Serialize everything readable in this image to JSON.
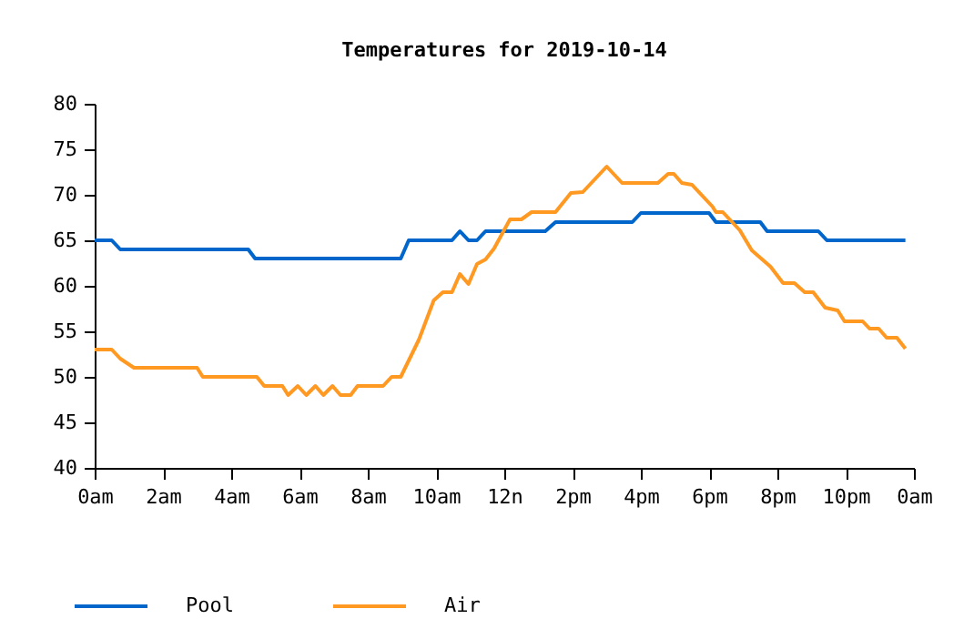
{
  "chart_data": {
    "type": "line",
    "title": "Temperatures for 2019-10-14",
    "series": [
      {
        "name": "Pool",
        "color": "#0066cc",
        "x": [
          "2019-10-14T00:00",
          "2019-10-14T00:30",
          "2019-10-14T00:45",
          "2019-10-14T04:30",
          "2019-10-14T04:42",
          "2019-10-14T08:58",
          "2019-10-14T09:12",
          "2019-10-14T10:28",
          "2019-10-14T10:42",
          "2019-10-14T10:57",
          "2019-10-14T11:12",
          "2019-10-14T11:27",
          "2019-10-14T13:12",
          "2019-10-14T13:30",
          "2019-10-14T15:45",
          "2019-10-14T16:00",
          "2019-10-14T18:00",
          "2019-10-14T18:12",
          "2019-10-14T19:30",
          "2019-10-14T19:42",
          "2019-10-14T21:12",
          "2019-10-14T21:27",
          "2019-10-14T23:45"
        ],
        "values": [
          65,
          65,
          64,
          64,
          63,
          63,
          65,
          65,
          66,
          65,
          65,
          66,
          66,
          67,
          67,
          68,
          68,
          67,
          67,
          66,
          66,
          65,
          65
        ]
      },
      {
        "name": "Air",
        "color": "#ff9922",
        "x": [
          "2019-10-14T00:00",
          "2019-10-14T00:30",
          "2019-10-14T00:45",
          "2019-10-14T01:09",
          "2019-10-14T03:00",
          "2019-10-14T03:10",
          "2019-10-14T04:45",
          "2019-10-14T04:58",
          "2019-10-14T05:30",
          "2019-10-14T05:40",
          "2019-10-14T05:57",
          "2019-10-14T06:12",
          "2019-10-14T06:28",
          "2019-10-14T06:42",
          "2019-10-14T06:58",
          "2019-10-14T07:12",
          "2019-10-14T07:30",
          "2019-10-14T07:42",
          "2019-10-14T08:27",
          "2019-10-14T08:42",
          "2019-10-14T08:58",
          "2019-10-14T09:30",
          "2019-10-14T09:56",
          "2019-10-14T10:12",
          "2019-10-14T10:28",
          "2019-10-14T10:42",
          "2019-10-14T10:57",
          "2019-10-14T11:12",
          "2019-10-14T11:27",
          "2019-10-14T11:42",
          "2019-10-14T12:10",
          "2019-10-14T12:30",
          "2019-10-14T12:48",
          "2019-10-14T13:30",
          "2019-10-14T13:57",
          "2019-10-14T14:18",
          "2019-10-14T15:00",
          "2019-10-14T15:27",
          "2019-10-14T16:30",
          "2019-10-14T16:48",
          "2019-10-14T16:58",
          "2019-10-14T17:12",
          "2019-10-14T17:30",
          "2019-10-14T18:06",
          "2019-10-14T18:12",
          "2019-10-14T18:24",
          "2019-10-14T18:54",
          "2019-10-14T19:15",
          "2019-10-14T19:48",
          "2019-10-14T20:10",
          "2019-10-14T20:30",
          "2019-10-14T20:48",
          "2019-10-14T21:03",
          "2019-10-14T21:24",
          "2019-10-14T21:46",
          "2019-10-14T21:58",
          "2019-10-14T22:30",
          "2019-10-14T22:42",
          "2019-10-14T22:58",
          "2019-10-14T23:12",
          "2019-10-14T23:30",
          "2019-10-14T23:45"
        ],
        "values": [
          53,
          53,
          52,
          51,
          51,
          50,
          50,
          49,
          49,
          48,
          49,
          48,
          49,
          48,
          49,
          48,
          48,
          49,
          49,
          50,
          50,
          54.1,
          58.4,
          59.3,
          59.3,
          61.3,
          60.2,
          62.4,
          62.9,
          64.1,
          67.3,
          67.3,
          68.1,
          68.1,
          70.2,
          70.3,
          73.1,
          71.3,
          71.3,
          72.3,
          72.3,
          71.3,
          71.1,
          68.7,
          68.1,
          68.1,
          66.1,
          63.9,
          62.1,
          60.3,
          60.3,
          59.3,
          59.3,
          57.6,
          57.3,
          56.1,
          56.1,
          55.3,
          55.3,
          54.3,
          54.3,
          53.1
        ]
      }
    ],
    "xlim": [
      "2019-10-14T00:00",
      "2019-10-15T00:00"
    ],
    "xticks": [
      {
        "value": "2019-10-14T00:00",
        "label": "0am"
      },
      {
        "value": "2019-10-14T02:00",
        "label": "2am"
      },
      {
        "value": "2019-10-14T04:00",
        "label": "4am"
      },
      {
        "value": "2019-10-14T06:00",
        "label": "6am"
      },
      {
        "value": "2019-10-14T08:00",
        "label": "8am"
      },
      {
        "value": "2019-10-14T10:00",
        "label": "10am"
      },
      {
        "value": "2019-10-14T12:00",
        "label": "12n"
      },
      {
        "value": "2019-10-14T14:00",
        "label": "2pm"
      },
      {
        "value": "2019-10-14T16:00",
        "label": "4pm"
      },
      {
        "value": "2019-10-14T18:00",
        "label": "6pm"
      },
      {
        "value": "2019-10-14T20:00",
        "label": "8pm"
      },
      {
        "value": "2019-10-14T22:00",
        "label": "10pm"
      },
      {
        "value": "2019-10-15T00:00",
        "label": "0am"
      }
    ],
    "ylim": [
      40,
      80
    ],
    "yticks": [
      40,
      45,
      50,
      55,
      60,
      65,
      70,
      75,
      80
    ],
    "legend": "bottom left",
    "line_style": "solid"
  }
}
